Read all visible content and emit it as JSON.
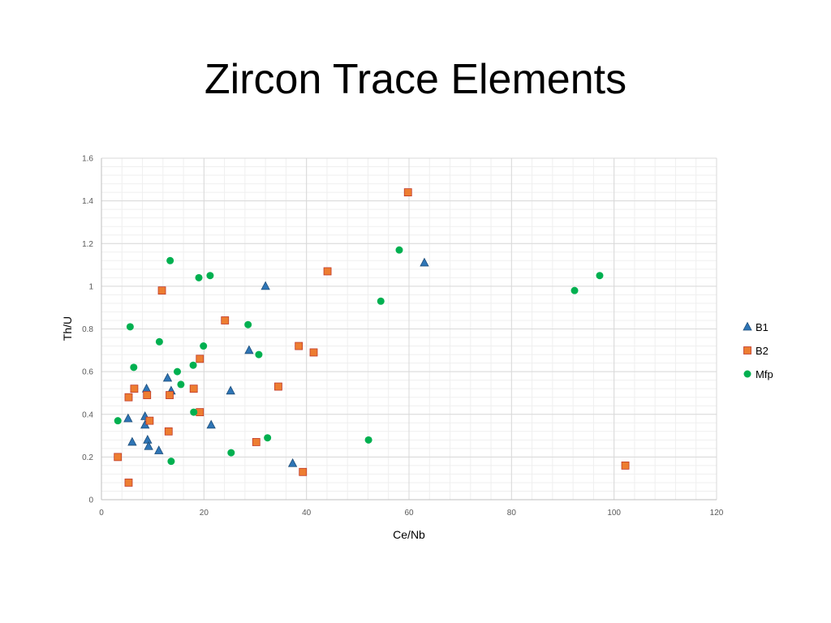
{
  "slide": {
    "title": "Zircon Trace Elements"
  },
  "chart_data": {
    "type": "scatter",
    "title": "",
    "xlabel": "Ce/Nb",
    "ylabel": "Th/U",
    "xlim": [
      0,
      120
    ],
    "ylim": [
      0,
      1.6
    ],
    "x_ticks": [
      0,
      20,
      40,
      60,
      80,
      100,
      120
    ],
    "y_ticks": [
      0,
      0.2,
      0.4,
      0.6,
      0.8,
      1,
      1.2,
      1.4,
      1.6
    ],
    "x_tick_labels": [
      "0",
      "20",
      "40",
      "60",
      "80",
      "100",
      "120"
    ],
    "y_tick_labels": [
      "0",
      "0.2",
      "0.4",
      "0.6",
      "0.8",
      "1",
      "1.2",
      "1.4",
      "1.6"
    ],
    "grid": true,
    "legend_position": "right",
    "series": [
      {
        "name": "B1",
        "marker": "triangle",
        "color": "#2E75B6",
        "points": [
          [
            5.2,
            0.38
          ],
          [
            6,
            0.27
          ],
          [
            8.5,
            0.39
          ],
          [
            8.5,
            0.35
          ],
          [
            8.8,
            0.52
          ],
          [
            9,
            0.28
          ],
          [
            9.2,
            0.25
          ],
          [
            11.2,
            0.23
          ],
          [
            12.9,
            0.57
          ],
          [
            13.6,
            0.51
          ],
          [
            21.4,
            0.35
          ],
          [
            25.2,
            0.51
          ],
          [
            28.8,
            0.7
          ],
          [
            32,
            1.0
          ],
          [
            37.3,
            0.17
          ],
          [
            63,
            1.11
          ]
        ]
      },
      {
        "name": "B2",
        "marker": "square",
        "color": "#ED7D31",
        "points": [
          [
            3.2,
            0.2
          ],
          [
            5.3,
            0.08
          ],
          [
            5.3,
            0.48
          ],
          [
            6.4,
            0.52
          ],
          [
            8.9,
            0.49
          ],
          [
            9.4,
            0.37
          ],
          [
            11.8,
            0.98
          ],
          [
            13.1,
            0.32
          ],
          [
            13.3,
            0.49
          ],
          [
            18,
            0.52
          ],
          [
            19.2,
            0.66
          ],
          [
            19.2,
            0.41
          ],
          [
            24.1,
            0.84
          ],
          [
            30.2,
            0.27
          ],
          [
            34.5,
            0.53
          ],
          [
            38.5,
            0.72
          ],
          [
            39.3,
            0.13
          ],
          [
            41.4,
            0.69
          ],
          [
            44.1,
            1.07
          ],
          [
            59.8,
            1.44
          ],
          [
            102.2,
            0.16
          ]
        ]
      },
      {
        "name": "Mfp",
        "marker": "circle",
        "color": "#00B050",
        "points": [
          [
            3.2,
            0.37
          ],
          [
            5.6,
            0.81
          ],
          [
            6.3,
            0.62
          ],
          [
            11.3,
            0.74
          ],
          [
            13.4,
            1.12
          ],
          [
            13.6,
            0.18
          ],
          [
            14.8,
            0.6
          ],
          [
            15.5,
            0.54
          ],
          [
            17.9,
            0.63
          ],
          [
            18,
            0.41
          ],
          [
            19,
            1.04
          ],
          [
            19.9,
            0.72
          ],
          [
            21.2,
            1.05
          ],
          [
            25.3,
            0.22
          ],
          [
            28.6,
            0.82
          ],
          [
            30.7,
            0.68
          ],
          [
            32.4,
            0.29
          ],
          [
            52.1,
            0.28
          ],
          [
            54.5,
            0.93
          ],
          [
            58.1,
            1.17
          ],
          [
            92.3,
            0.98
          ],
          [
            97.2,
            1.05
          ]
        ]
      }
    ]
  }
}
